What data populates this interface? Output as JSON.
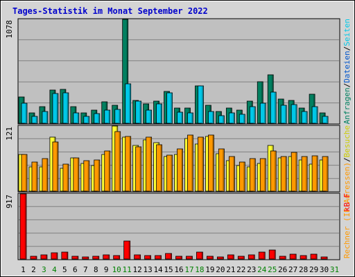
{
  "title": "Tages-Statistik im Monat September 2022",
  "colors": {
    "background": "#d4d4d4",
    "plot": "#c0c0c0",
    "grid": "#808080",
    "title": "#0000cc",
    "visits": "#008060",
    "pages": "#00c8e8",
    "hosts": "#ffff33",
    "files": "#ff9900",
    "kbytes": "#ff0000",
    "weekend": "#008000",
    "weekday": "#000000"
  },
  "right_labels": {
    "top": [
      {
        "text": "Anfragen",
        "color": "#008060"
      },
      {
        "text": "/",
        "color": "#000000"
      },
      {
        "text": "Dateien",
        "color": "#0055cc"
      },
      {
        "text": "/",
        "color": "#000000"
      },
      {
        "text": "Seiten",
        "color": "#00c8e8"
      }
    ],
    "middle": [
      {
        "text": "Rechner (IP-Adressen)",
        "color": "#ff9900"
      },
      {
        "text": "/",
        "color": "#000000"
      },
      {
        "text": "Besuche",
        "color": "#cccc00"
      }
    ],
    "bottom": [
      {
        "text": "kB F",
        "color": "#ff0000"
      }
    ]
  },
  "chart_data": [
    {
      "type": "bar",
      "name": "requests",
      "ymax_label": "1078",
      "ylim": [
        0,
        1078
      ],
      "categories": [
        "1",
        "2",
        "3",
        "4",
        "5",
        "6",
        "7",
        "8",
        "9",
        "10",
        "11",
        "12",
        "13",
        "14",
        "15",
        "16",
        "17",
        "18",
        "19",
        "20",
        "21",
        "22",
        "23",
        "24",
        "25",
        "26",
        "27",
        "28",
        "29",
        "30",
        "31"
      ],
      "series": [
        {
          "name": "Anfragen",
          "color": "#008060",
          "values": [
            270,
            110,
            175,
            345,
            355,
            175,
            110,
            140,
            225,
            185,
            1078,
            240,
            200,
            230,
            330,
            160,
            160,
            385,
            190,
            120,
            160,
            140,
            230,
            430,
            500,
            250,
            240,
            160,
            300,
            110,
            0
          ]
        },
        {
          "name": "Seiten",
          "color": "#00c8e8",
          "values": [
            210,
            70,
            120,
            310,
            315,
            105,
            70,
            100,
            135,
            145,
            410,
            230,
            140,
            200,
            315,
            115,
            110,
            385,
            120,
            80,
            105,
            90,
            175,
            210,
            320,
            190,
            195,
            120,
            170,
            75,
            0
          ]
        }
      ]
    },
    {
      "type": "bar",
      "name": "hosts",
      "ymax_label": "121",
      "ylim": [
        0,
        121
      ],
      "categories": [
        "1",
        "2",
        "3",
        "4",
        "5",
        "6",
        "7",
        "8",
        "9",
        "10",
        "11",
        "12",
        "13",
        "14",
        "15",
        "16",
        "17",
        "18",
        "19",
        "20",
        "21",
        "22",
        "23",
        "24",
        "25",
        "26",
        "27",
        "28",
        "29",
        "30",
        "31"
      ],
      "series": [
        {
          "name": "Besuche",
          "color": "#ffff33",
          "values": [
            68,
            45,
            45,
            100,
            42,
            62,
            52,
            48,
            68,
            121,
            100,
            85,
            95,
            90,
            65,
            68,
            98,
            88,
            102,
            70,
            57,
            47,
            45,
            52,
            85,
            62,
            65,
            58,
            50,
            58,
            0
          ]
        },
        {
          "name": "Rechner (IP-Adressen)",
          "color": "#ff9900",
          "values": [
            68,
            54,
            60,
            92,
            50,
            62,
            56,
            58,
            75,
            111,
            102,
            82,
            100,
            86,
            67,
            78,
            104,
            100,
            104,
            78,
            64,
            54,
            60,
            60,
            75,
            65,
            72,
            64,
            66,
            65,
            0
          ]
        }
      ]
    },
    {
      "type": "bar",
      "name": "kbytes",
      "ymax_label": "917",
      "ylim": [
        0,
        917
      ],
      "categories": [
        "1",
        "2",
        "3",
        "4",
        "5",
        "6",
        "7",
        "8",
        "9",
        "10",
        "11",
        "12",
        "13",
        "14",
        "15",
        "16",
        "17",
        "18",
        "19",
        "20",
        "21",
        "22",
        "23",
        "24",
        "25",
        "26",
        "27",
        "28",
        "29",
        "30",
        "31"
      ],
      "series": [
        {
          "name": "kB F",
          "color": "#ff0000",
          "values": [
            917,
            40,
            55,
            85,
            95,
            40,
            30,
            40,
            55,
            45,
            255,
            60,
            45,
            50,
            75,
            40,
            40,
            95,
            40,
            30,
            55,
            40,
            60,
            100,
            125,
            40,
            70,
            45,
            65,
            30,
            0
          ]
        }
      ]
    }
  ],
  "x_labels": {
    "days": [
      "1",
      "2",
      "3",
      "4",
      "5",
      "6",
      "7",
      "8",
      "9",
      "10",
      "11",
      "12",
      "13",
      "14",
      "15",
      "16",
      "17",
      "18",
      "19",
      "20",
      "21",
      "22",
      "23",
      "24",
      "25",
      "26",
      "27",
      "28",
      "29",
      "30",
      "31"
    ],
    "weekend": [
      "3",
      "4",
      "10",
      "11",
      "17",
      "18",
      "24",
      "25",
      "31"
    ]
  }
}
